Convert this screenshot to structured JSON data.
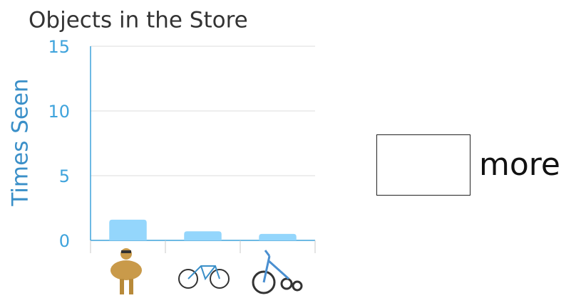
{
  "chart_data": {
    "type": "bar",
    "title": "Objects in the Store",
    "y_label": "Times Seen",
    "categories": [
      null,
      null,
      null
    ],
    "values": [
      1.6,
      0.7,
      0.5
    ],
    "color": "#94d6fc",
    "ylim": [
      0,
      15
    ],
    "yticks": [
      0,
      5,
      10,
      15
    ],
    "grid": true
  },
  "answer": {
    "label": "more"
  }
}
